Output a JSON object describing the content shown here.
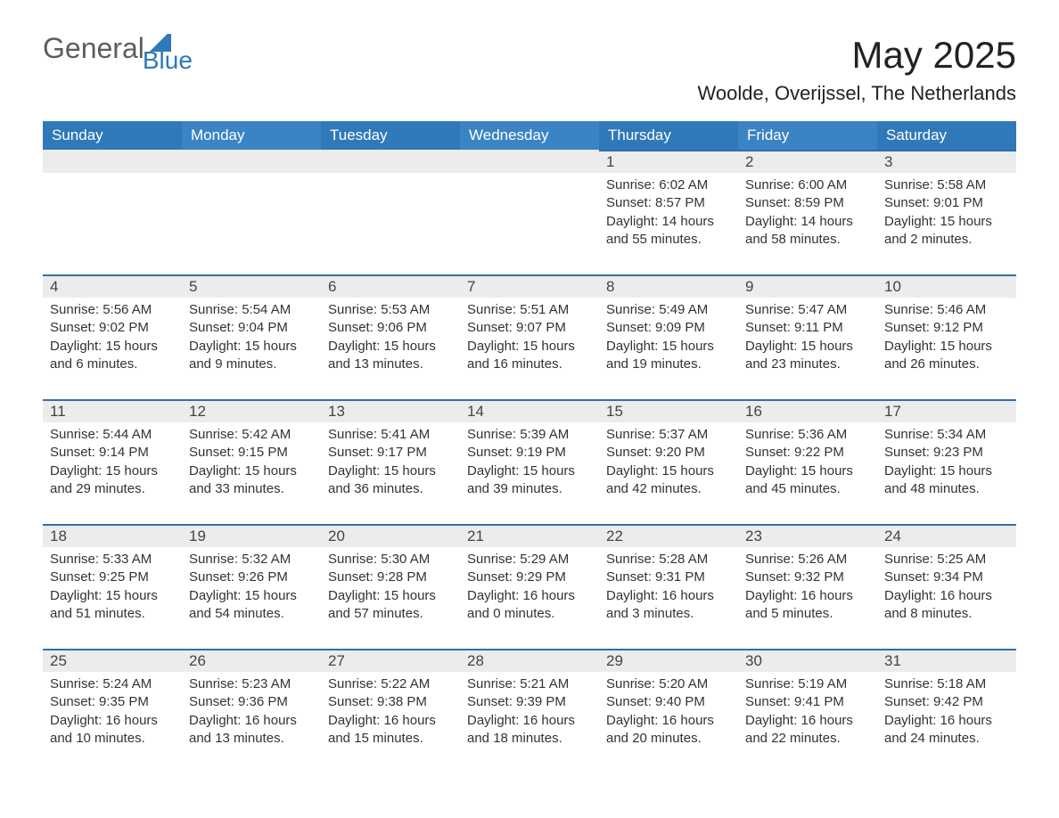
{
  "brand": {
    "left": "General",
    "right": "Blue"
  },
  "title": "May 2025",
  "subtitle": "Woolde, Overijssel, The Netherlands",
  "colors": {
    "header_blue": "#2f79b9",
    "header_blue_light": "#3a84c4",
    "row_gray": "#ececec",
    "row_border": "#2f6fad",
    "text": "#333333",
    "brand_gray": "#5d5d5d",
    "brand_blue": "#2f79b9",
    "background": "#ffffff"
  },
  "typography": {
    "title_fontsize": 42,
    "subtitle_fontsize": 22,
    "dow_fontsize": 17,
    "body_fontsize": 15
  },
  "layout": {
    "columns": 7,
    "rows": 5,
    "leading_blanks": 4
  },
  "dow": [
    "Sunday",
    "Monday",
    "Tuesday",
    "Wednesday",
    "Thursday",
    "Friday",
    "Saturday"
  ],
  "days": [
    {
      "n": 1,
      "sunrise": "6:02 AM",
      "sunset": "8:57 PM",
      "daylight": "14 hours and 55 minutes."
    },
    {
      "n": 2,
      "sunrise": "6:00 AM",
      "sunset": "8:59 PM",
      "daylight": "14 hours and 58 minutes."
    },
    {
      "n": 3,
      "sunrise": "5:58 AM",
      "sunset": "9:01 PM",
      "daylight": "15 hours and 2 minutes."
    },
    {
      "n": 4,
      "sunrise": "5:56 AM",
      "sunset": "9:02 PM",
      "daylight": "15 hours and 6 minutes."
    },
    {
      "n": 5,
      "sunrise": "5:54 AM",
      "sunset": "9:04 PM",
      "daylight": "15 hours and 9 minutes."
    },
    {
      "n": 6,
      "sunrise": "5:53 AM",
      "sunset": "9:06 PM",
      "daylight": "15 hours and 13 minutes."
    },
    {
      "n": 7,
      "sunrise": "5:51 AM",
      "sunset": "9:07 PM",
      "daylight": "15 hours and 16 minutes."
    },
    {
      "n": 8,
      "sunrise": "5:49 AM",
      "sunset": "9:09 PM",
      "daylight": "15 hours and 19 minutes."
    },
    {
      "n": 9,
      "sunrise": "5:47 AM",
      "sunset": "9:11 PM",
      "daylight": "15 hours and 23 minutes."
    },
    {
      "n": 10,
      "sunrise": "5:46 AM",
      "sunset": "9:12 PM",
      "daylight": "15 hours and 26 minutes."
    },
    {
      "n": 11,
      "sunrise": "5:44 AM",
      "sunset": "9:14 PM",
      "daylight": "15 hours and 29 minutes."
    },
    {
      "n": 12,
      "sunrise": "5:42 AM",
      "sunset": "9:15 PM",
      "daylight": "15 hours and 33 minutes."
    },
    {
      "n": 13,
      "sunrise": "5:41 AM",
      "sunset": "9:17 PM",
      "daylight": "15 hours and 36 minutes."
    },
    {
      "n": 14,
      "sunrise": "5:39 AM",
      "sunset": "9:19 PM",
      "daylight": "15 hours and 39 minutes."
    },
    {
      "n": 15,
      "sunrise": "5:37 AM",
      "sunset": "9:20 PM",
      "daylight": "15 hours and 42 minutes."
    },
    {
      "n": 16,
      "sunrise": "5:36 AM",
      "sunset": "9:22 PM",
      "daylight": "15 hours and 45 minutes."
    },
    {
      "n": 17,
      "sunrise": "5:34 AM",
      "sunset": "9:23 PM",
      "daylight": "15 hours and 48 minutes."
    },
    {
      "n": 18,
      "sunrise": "5:33 AM",
      "sunset": "9:25 PM",
      "daylight": "15 hours and 51 minutes."
    },
    {
      "n": 19,
      "sunrise": "5:32 AM",
      "sunset": "9:26 PM",
      "daylight": "15 hours and 54 minutes."
    },
    {
      "n": 20,
      "sunrise": "5:30 AM",
      "sunset": "9:28 PM",
      "daylight": "15 hours and 57 minutes."
    },
    {
      "n": 21,
      "sunrise": "5:29 AM",
      "sunset": "9:29 PM",
      "daylight": "16 hours and 0 minutes."
    },
    {
      "n": 22,
      "sunrise": "5:28 AM",
      "sunset": "9:31 PM",
      "daylight": "16 hours and 3 minutes."
    },
    {
      "n": 23,
      "sunrise": "5:26 AM",
      "sunset": "9:32 PM",
      "daylight": "16 hours and 5 minutes."
    },
    {
      "n": 24,
      "sunrise": "5:25 AM",
      "sunset": "9:34 PM",
      "daylight": "16 hours and 8 minutes."
    },
    {
      "n": 25,
      "sunrise": "5:24 AM",
      "sunset": "9:35 PM",
      "daylight": "16 hours and 10 minutes."
    },
    {
      "n": 26,
      "sunrise": "5:23 AM",
      "sunset": "9:36 PM",
      "daylight": "16 hours and 13 minutes."
    },
    {
      "n": 27,
      "sunrise": "5:22 AM",
      "sunset": "9:38 PM",
      "daylight": "16 hours and 15 minutes."
    },
    {
      "n": 28,
      "sunrise": "5:21 AM",
      "sunset": "9:39 PM",
      "daylight": "16 hours and 18 minutes."
    },
    {
      "n": 29,
      "sunrise": "5:20 AM",
      "sunset": "9:40 PM",
      "daylight": "16 hours and 20 minutes."
    },
    {
      "n": 30,
      "sunrise": "5:19 AM",
      "sunset": "9:41 PM",
      "daylight": "16 hours and 22 minutes."
    },
    {
      "n": 31,
      "sunrise": "5:18 AM",
      "sunset": "9:42 PM",
      "daylight": "16 hours and 24 minutes."
    }
  ],
  "labels": {
    "sunrise": "Sunrise: ",
    "sunset": "Sunset: ",
    "daylight": "Daylight: "
  }
}
